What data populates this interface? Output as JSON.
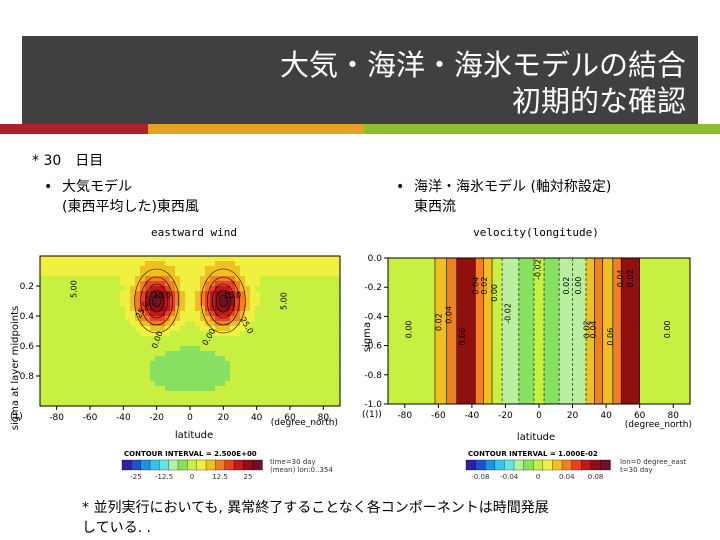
{
  "title": {
    "line1": "大気・海洋・海氷モデルの結合",
    "line2": "初期的な確認"
  },
  "colors": {
    "title_bg": "#404040",
    "accent_red": "#b0202a",
    "accent_orange": "#e8a020",
    "accent_green": "#8ebd2a"
  },
  "note_top": "* 30　日目",
  "left_bullet": {
    "line1": "大気モデル",
    "line2": "(東西平均した)東西風"
  },
  "right_bullet": {
    "line1": "海洋・海氷モデル (軸対称設定)",
    "line2": "東西流"
  },
  "note_bottom": {
    "line1": "* 並列実行においても, 異常終了することなく各コンポーネントは時間発展",
    "line2": "している. ."
  },
  "chart_data": [
    {
      "type": "heatmap",
      "title": "eastward wind",
      "xlabel": "latitude",
      "xunit": "(degree_north)",
      "ylabel": "sigma at layer midpoints",
      "xlim": [
        -90,
        90
      ],
      "ylim": [
        1.0,
        0.0
      ],
      "xticks": [
        -80,
        -60,
        -40,
        -20,
        0,
        20,
        40,
        60,
        80
      ],
      "yticks": [
        0.2,
        0.4,
        0.6,
        0.8
      ],
      "corner_label": "(1)",
      "contour_labels": [
        "5.00",
        "5.00",
        "15.0",
        "15.0",
        "25.0",
        "25.0",
        "0.00",
        "0.00"
      ],
      "jets": [
        {
          "lat": -20,
          "sigma": 0.3,
          "max": 27.5
        },
        {
          "lat": 20,
          "sigma": 0.3,
          "max": 27.5
        }
      ],
      "contour_interval": "CONTOUR INTERVAL = 2.500E+00",
      "meta": [
        "time=30 day",
        "(mean) lon:0..354"
      ],
      "colorbar_ticks": [
        "-25",
        "-12.5",
        "0",
        "12.5",
        "25"
      ]
    },
    {
      "type": "heatmap",
      "title": "velocity(longitude)",
      "xlabel": "latitude",
      "xunit": "(degree_north)",
      "ylabel": "sigma",
      "xlim": [
        -90,
        90
      ],
      "ylim": [
        0.0,
        -1.0
      ],
      "xticks": [
        -80,
        -60,
        -40,
        -20,
        0,
        20,
        40,
        60,
        80
      ],
      "yticks": [
        0.0,
        -0.2,
        -0.4,
        -0.6,
        -0.8,
        -1.0
      ],
      "corner_label": "((1))",
      "contour_labels": [
        "0.00",
        "0.02",
        "0.04",
        "0.06",
        "0.04",
        "0.02",
        "0.00",
        "-0.02",
        "-0.02",
        "0.02",
        "0.00",
        "0.02",
        "0.04",
        "0.06",
        "0.04",
        "0.02",
        "0.00"
      ],
      "bands": [
        {
          "lat_from": -90,
          "lat_to": -62,
          "value": 0.0
        },
        {
          "lat_from": -62,
          "lat_to": -55,
          "value": 0.02
        },
        {
          "lat_from": -55,
          "lat_to": -49,
          "value": 0.04
        },
        {
          "lat_from": -49,
          "lat_to": -38,
          "value": 0.07
        },
        {
          "lat_from": -38,
          "lat_to": -33,
          "value": 0.04
        },
        {
          "lat_from": -33,
          "lat_to": -28,
          "value": 0.02
        },
        {
          "lat_from": -28,
          "lat_to": -22,
          "value": 0.0
        },
        {
          "lat_from": -22,
          "lat_to": -12,
          "value": -0.03
        },
        {
          "lat_from": -12,
          "lat_to": -3,
          "value": -0.01
        },
        {
          "lat_from": -3,
          "lat_to": 3,
          "value": 0.0
        },
        {
          "lat_from": 3,
          "lat_to": 12,
          "value": -0.01
        },
        {
          "lat_from": 12,
          "lat_to": 20,
          "value": -0.02
        },
        {
          "lat_from": 20,
          "lat_to": 28,
          "value": -0.03
        },
        {
          "lat_from": 28,
          "lat_to": 33,
          "value": 0.02
        },
        {
          "lat_from": 33,
          "lat_to": 38,
          "value": 0.04
        },
        {
          "lat_from": 38,
          "lat_to": 44,
          "value": 0.02
        },
        {
          "lat_from": 44,
          "lat_to": 49,
          "value": 0.04
        },
        {
          "lat_from": 49,
          "lat_to": 60,
          "value": 0.07
        },
        {
          "lat_from": 60,
          "lat_to": 90,
          "value": 0.0
        }
      ],
      "contour_interval": "CONTOUR INTERVAL = 1.000E-02",
      "meta": [
        "lon=0 degree_east",
        "t=30 day"
      ],
      "colorbar_ticks": [
        "-0.08",
        "-0.04",
        "0",
        "0.04",
        "0.08"
      ]
    }
  ]
}
